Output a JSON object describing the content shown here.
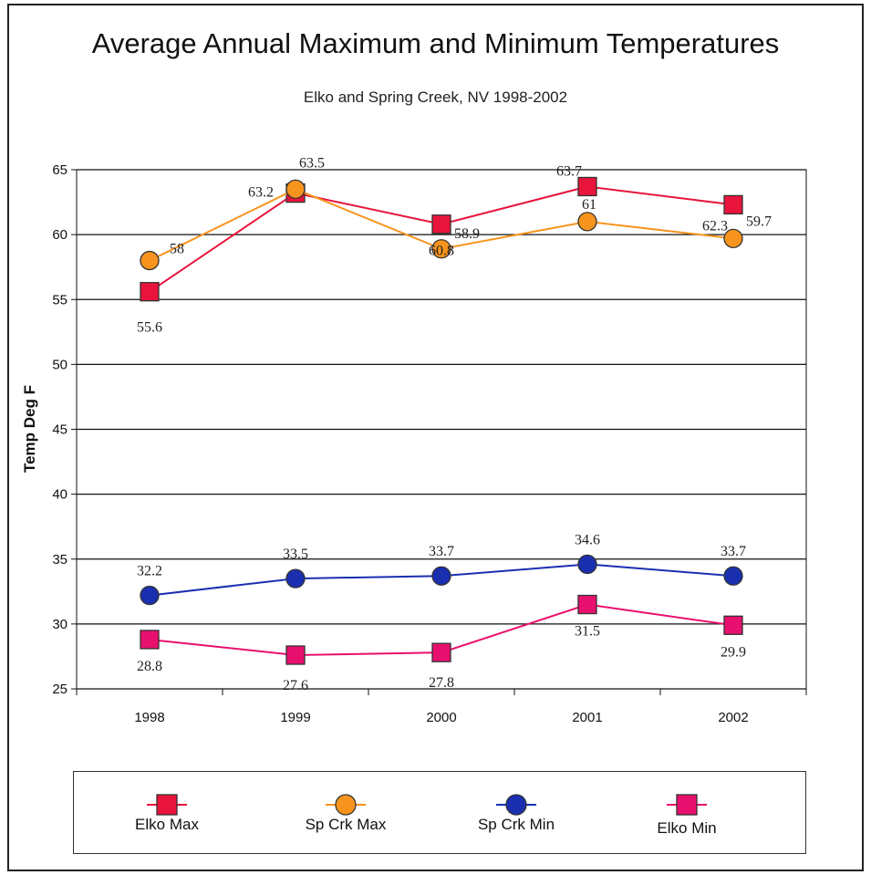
{
  "chart_data": {
    "type": "line",
    "title": "Average Annual Maximum and Minimum Temperatures",
    "subtitle": "Elko and Spring Creek, NV 1998-2002",
    "xlabel": "",
    "ylabel": "Temp Deg F",
    "categories": [
      "1998",
      "1999",
      "2000",
      "2001",
      "2002"
    ],
    "ylim": [
      25,
      65
    ],
    "yticks": [
      25,
      30,
      35,
      40,
      45,
      50,
      55,
      60,
      65
    ],
    "grid": true,
    "legend_position": "bottom",
    "series": [
      {
        "name": "Elko Max",
        "values": [
          55.6,
          63.2,
          60.8,
          63.7,
          62.3
        ],
        "labels": [
          "55.6",
          "63.2",
          "60.8",
          "63.7",
          "62.3"
        ],
        "color": "#e8143c",
        "marker": "square"
      },
      {
        "name": "Sp Crk Max",
        "values": [
          58,
          63.5,
          58.9,
          61,
          59.7
        ],
        "labels": [
          "58",
          "63.5",
          "58.9",
          "61",
          "59.7"
        ],
        "color": "#f7941d",
        "marker": "circle"
      },
      {
        "name": "Sp Crk Min",
        "values": [
          32.2,
          33.5,
          33.7,
          34.6,
          33.7
        ],
        "labels": [
          "32.2",
          "33.5",
          "33.7",
          "34.6",
          "33.7"
        ],
        "color": "#1a2fb0",
        "marker": "circle"
      },
      {
        "name": "Elko Min",
        "values": [
          28.8,
          27.6,
          27.8,
          31.5,
          29.9
        ],
        "labels": [
          "28.8",
          "27.6",
          "27.8",
          "31.5",
          "29.9"
        ],
        "color": "#e8106e",
        "marker": "square"
      }
    ]
  }
}
